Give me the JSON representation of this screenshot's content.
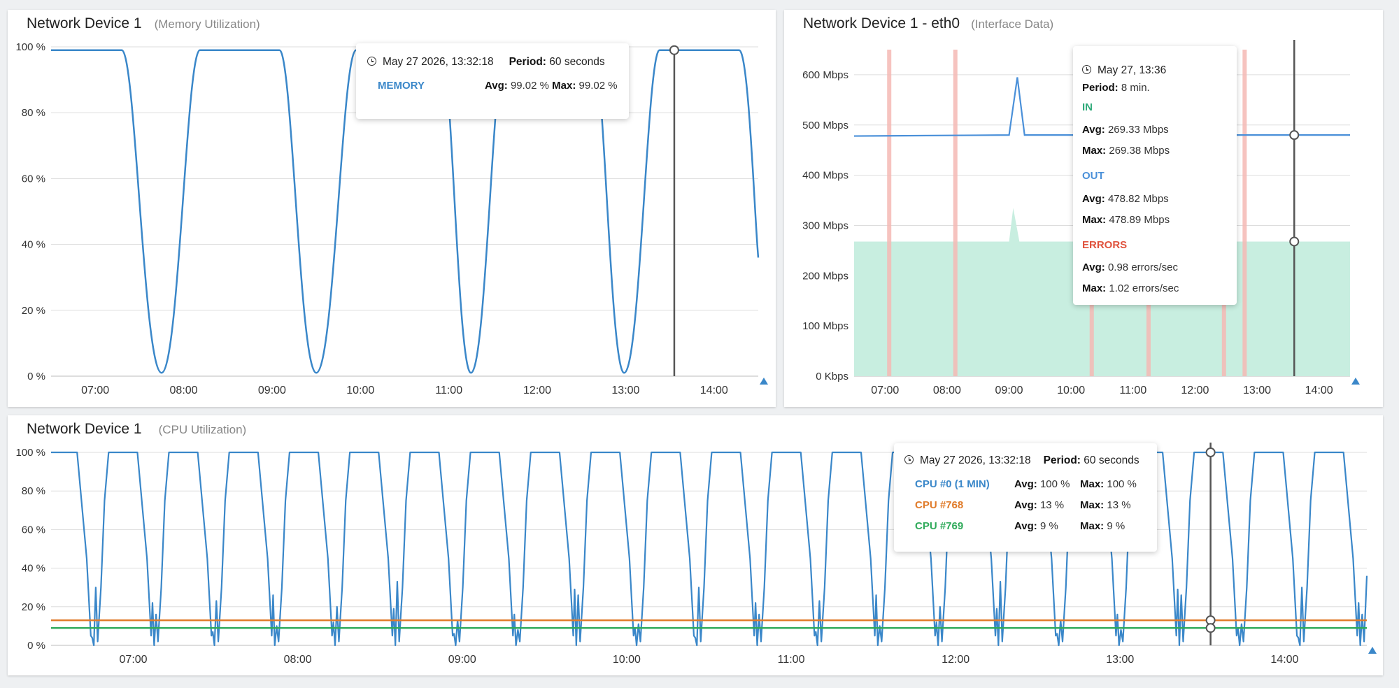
{
  "panels": {
    "memory": {
      "title": "Network Device 1",
      "subtitle": "(Memory Utilization)",
      "tooltip": {
        "time": "May 27 2026, 13:32:18",
        "period_label": "Period:",
        "period_value": "60 seconds",
        "series": [
          {
            "name": "MEMORY",
            "color": "#3a87c9",
            "avg_label": "Avg:",
            "avg": "99.02 %",
            "max_label": "Max:",
            "max": "99.02 %"
          }
        ]
      }
    },
    "interface": {
      "title": "Network Device 1 - eth0",
      "subtitle": "(Interface Data)",
      "tooltip": {
        "time": "May 27, 13:36",
        "period_label": "Period:",
        "period_value": "8 min.",
        "in_label": "IN",
        "in_avg_label": "Avg:",
        "in_avg": "269.33 Mbps",
        "in_max_label": "Max:",
        "in_max": "269.38 Mbps",
        "out_label": "OUT",
        "out_avg_label": "Avg:",
        "out_avg": "478.82 Mbps",
        "out_max_label": "Max:",
        "out_max": "478.89 Mbps",
        "err_label": "ERRORS",
        "err_avg_label": "Avg:",
        "err_avg": "0.98 errors/sec",
        "err_max_label": "Max:",
        "err_max": "1.02 errors/sec"
      }
    },
    "cpu": {
      "title": "Network Device 1",
      "subtitle": "(CPU Utilization)",
      "tooltip": {
        "time": "May 27 2026, 13:32:18",
        "period_label": "Period:",
        "period_value": "60 seconds",
        "series": [
          {
            "name": "CPU #0 (1 MIN)",
            "color": "#3a87c9",
            "avg_label": "Avg:",
            "avg": "100 %",
            "max_label": "Max:",
            "max": "100 %"
          },
          {
            "name": "CPU #768",
            "color": "#e07b2a",
            "avg_label": "Avg:",
            "avg": "13 %",
            "max_label": "Max:",
            "max": "13 %"
          },
          {
            "name": "CPU #769",
            "color": "#2faa5a",
            "avg_label": "Avg:",
            "avg": "9 %",
            "max_label": "Max:",
            "max": "9 %"
          }
        ]
      }
    }
  },
  "chart_data": [
    {
      "type": "line",
      "title": "Network Device 1",
      "subtitle": "(Memory Utilization)",
      "x_range": [
        "06:30",
        "14:30"
      ],
      "x_ticks": [
        "07:00",
        "08:00",
        "09:00",
        "10:00",
        "11:00",
        "12:00",
        "13:00",
        "14:00"
      ],
      "y_ticks": [
        "0 %",
        "20 %",
        "40 %",
        "60 %",
        "80 %",
        "100 %"
      ],
      "ylim": [
        0,
        100
      ],
      "grid": true,
      "cursor_time": "13:33",
      "series": [
        {
          "name": "MEMORY",
          "color": "#3a87c9",
          "x": [
            "06:30",
            "07:18",
            "07:45",
            "08:11",
            "09:05",
            "09:30",
            "09:57",
            "10:55",
            "11:15",
            "11:38",
            "12:38",
            "12:59",
            "13:23",
            "14:17",
            "14:30"
          ],
          "y": [
            99,
            99,
            1,
            99,
            99,
            1,
            99,
            99,
            1,
            99,
            99,
            1,
            99,
            99,
            36
          ]
        }
      ]
    },
    {
      "type": "line",
      "title": "Network Device 1 - eth0",
      "subtitle": "(Interface Data)",
      "x_range": [
        "06:30",
        "14:30"
      ],
      "x_ticks": [
        "07:00",
        "08:00",
        "09:00",
        "10:00",
        "11:00",
        "12:00",
        "13:00",
        "14:00"
      ],
      "y_ticks": [
        "0 Kbps",
        "100 Mbps",
        "200 Mbps",
        "300 Mbps",
        "400 Mbps",
        "500 Mbps",
        "600 Mbps"
      ],
      "ylim": [
        0,
        650
      ],
      "grid": true,
      "cursor_time": "13:36",
      "series": [
        {
          "name": "IN",
          "kind": "area",
          "color": "#c8eee0",
          "x": [
            "06:30",
            "09:00",
            "09:04",
            "09:10",
            "14:30"
          ],
          "y": [
            268,
            268,
            335,
            268,
            268
          ]
        },
        {
          "name": "OUT",
          "kind": "line",
          "color": "#4a90d9",
          "x": [
            "06:30",
            "09:00",
            "09:08",
            "09:15",
            "14:30"
          ],
          "y": [
            478,
            480,
            595,
            480,
            480
          ]
        },
        {
          "name": "ERRORS",
          "kind": "bars",
          "color": "#f5b8b4",
          "x": [
            "07:04",
            "08:08",
            "10:20",
            "11:15",
            "12:28",
            "12:48"
          ]
        }
      ]
    },
    {
      "type": "line",
      "title": "Network Device 1",
      "subtitle": "(CPU Utilization)",
      "x_range": [
        "06:30",
        "14:30"
      ],
      "x_ticks": [
        "07:00",
        "08:00",
        "09:00",
        "10:00",
        "11:00",
        "12:00",
        "13:00",
        "14:00"
      ],
      "y_ticks": [
        "0 %",
        "20 %",
        "40 %",
        "60 %",
        "80 %",
        "100 %"
      ],
      "ylim": [
        0,
        100
      ],
      "grid": true,
      "cursor_time": "13:33",
      "series": [
        {
          "name": "CPU #0 (1 MIN)",
          "color": "#3a87c9",
          "period_min": 22,
          "first_high_start": "06:30",
          "high": 100,
          "low": 0
        },
        {
          "name": "CPU #768",
          "color": "#e07b2a",
          "x": [
            "06:30",
            "14:30"
          ],
          "y": [
            13,
            13
          ]
        },
        {
          "name": "CPU #769",
          "color": "#2faa5a",
          "x": [
            "06:30",
            "14:30"
          ],
          "y": [
            9,
            9
          ]
        }
      ]
    }
  ]
}
